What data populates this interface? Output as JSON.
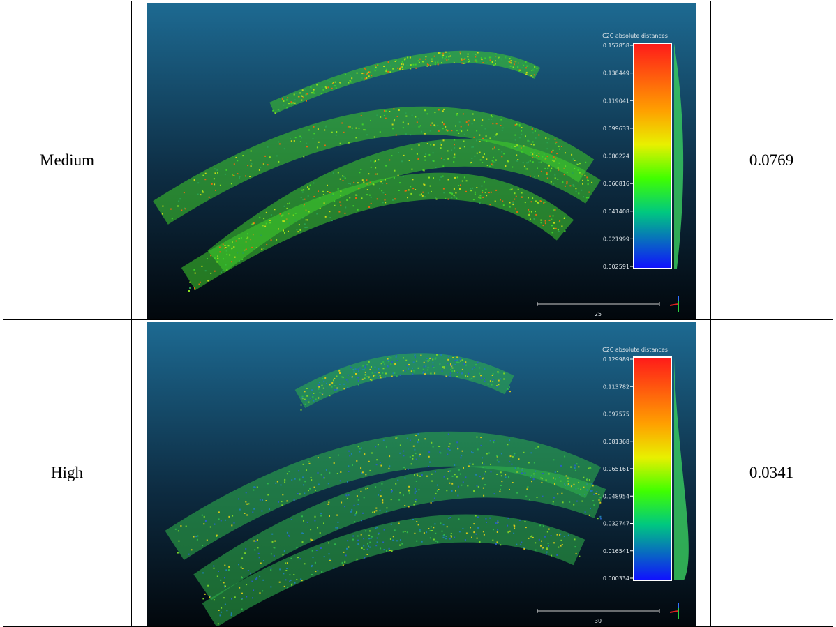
{
  "table": {
    "rows": [
      {
        "label": "Medium",
        "value": "0.0769",
        "image": {
          "legend_title": "C2C absolute distances",
          "scale_labels": [
            "0.157858",
            "0.138449",
            "0.119041",
            "0.099633",
            "0.080224",
            "0.060816",
            "0.041408",
            "0.021999",
            "0.002591"
          ],
          "scale_bar": "25"
        }
      },
      {
        "label": "High",
        "value": "0.0341",
        "image": {
          "legend_title": "C2C absolute distances",
          "scale_labels": [
            "0.129989",
            "0.113782",
            "0.097575",
            "0.081368",
            "0.065161",
            "0.048954",
            "0.032747",
            "0.016541",
            "0.000334"
          ],
          "scale_bar": "30"
        }
      }
    ]
  }
}
